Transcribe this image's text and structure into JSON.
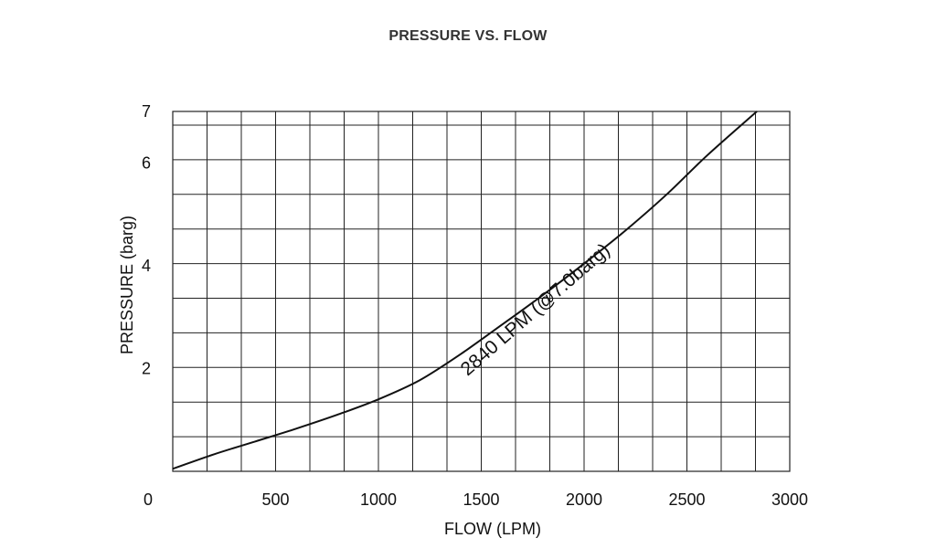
{
  "chart_data": {
    "type": "line",
    "title": "PRESSURE VS. FLOW",
    "xlabel": "FLOW (LPM)",
    "ylabel": "PRESSURE (barg)",
    "xlim": [
      0,
      3000
    ],
    "ylim": [
      0,
      7
    ],
    "x_ticks": [
      0,
      500,
      1000,
      1500,
      2000,
      2500,
      3000
    ],
    "x_tick_labels": [
      "0",
      "500",
      "1000",
      "1500",
      "2000",
      "2500",
      "3000"
    ],
    "y_ticks": [
      2,
      4,
      6,
      7
    ],
    "y_tick_labels": [
      "2",
      "4",
      "6",
      "7"
    ],
    "grid": true,
    "series": [
      {
        "x": [
          0,
          200,
          400,
          600,
          800,
          1000,
          1200,
          1400,
          1600,
          1800,
          2000,
          2200,
          2400,
          2600,
          2840
        ],
        "y": [
          0.05,
          0.33,
          0.58,
          0.83,
          1.1,
          1.4,
          1.77,
          2.28,
          2.85,
          3.43,
          4.04,
          4.68,
          5.38,
          6.15,
          7.0
        ]
      }
    ],
    "annotation": {
      "text": "2840 LPM (@7.0barg)"
    }
  }
}
